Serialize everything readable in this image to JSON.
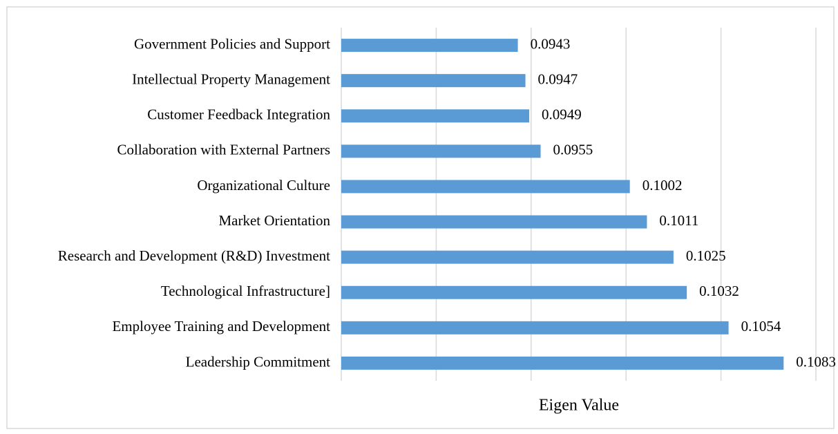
{
  "chart_data": {
    "type": "barh",
    "categories": [
      "Government Policies and Support",
      "Intellectual Property Management",
      "Customer Feedback Integration",
      "Collaboration with External Partners",
      "Organizational Culture",
      "Market Orientation",
      "Research and Development (R&D) Investment",
      "Technological Infrastructure]",
      "Employee Training and Development",
      "Leadership Commitment"
    ],
    "values": [
      0.0943,
      0.0947,
      0.0949,
      0.0955,
      0.1002,
      0.1011,
      0.1025,
      0.1032,
      0.1054,
      0.1083
    ],
    "color": "#5b9bd5",
    "xlabel": "Eigen Value",
    "xlim": [
      0.085,
      0.11
    ],
    "xticks": [
      0.085,
      0.09,
      0.095,
      0.1,
      0.105,
      0.11
    ],
    "grid": true
  }
}
